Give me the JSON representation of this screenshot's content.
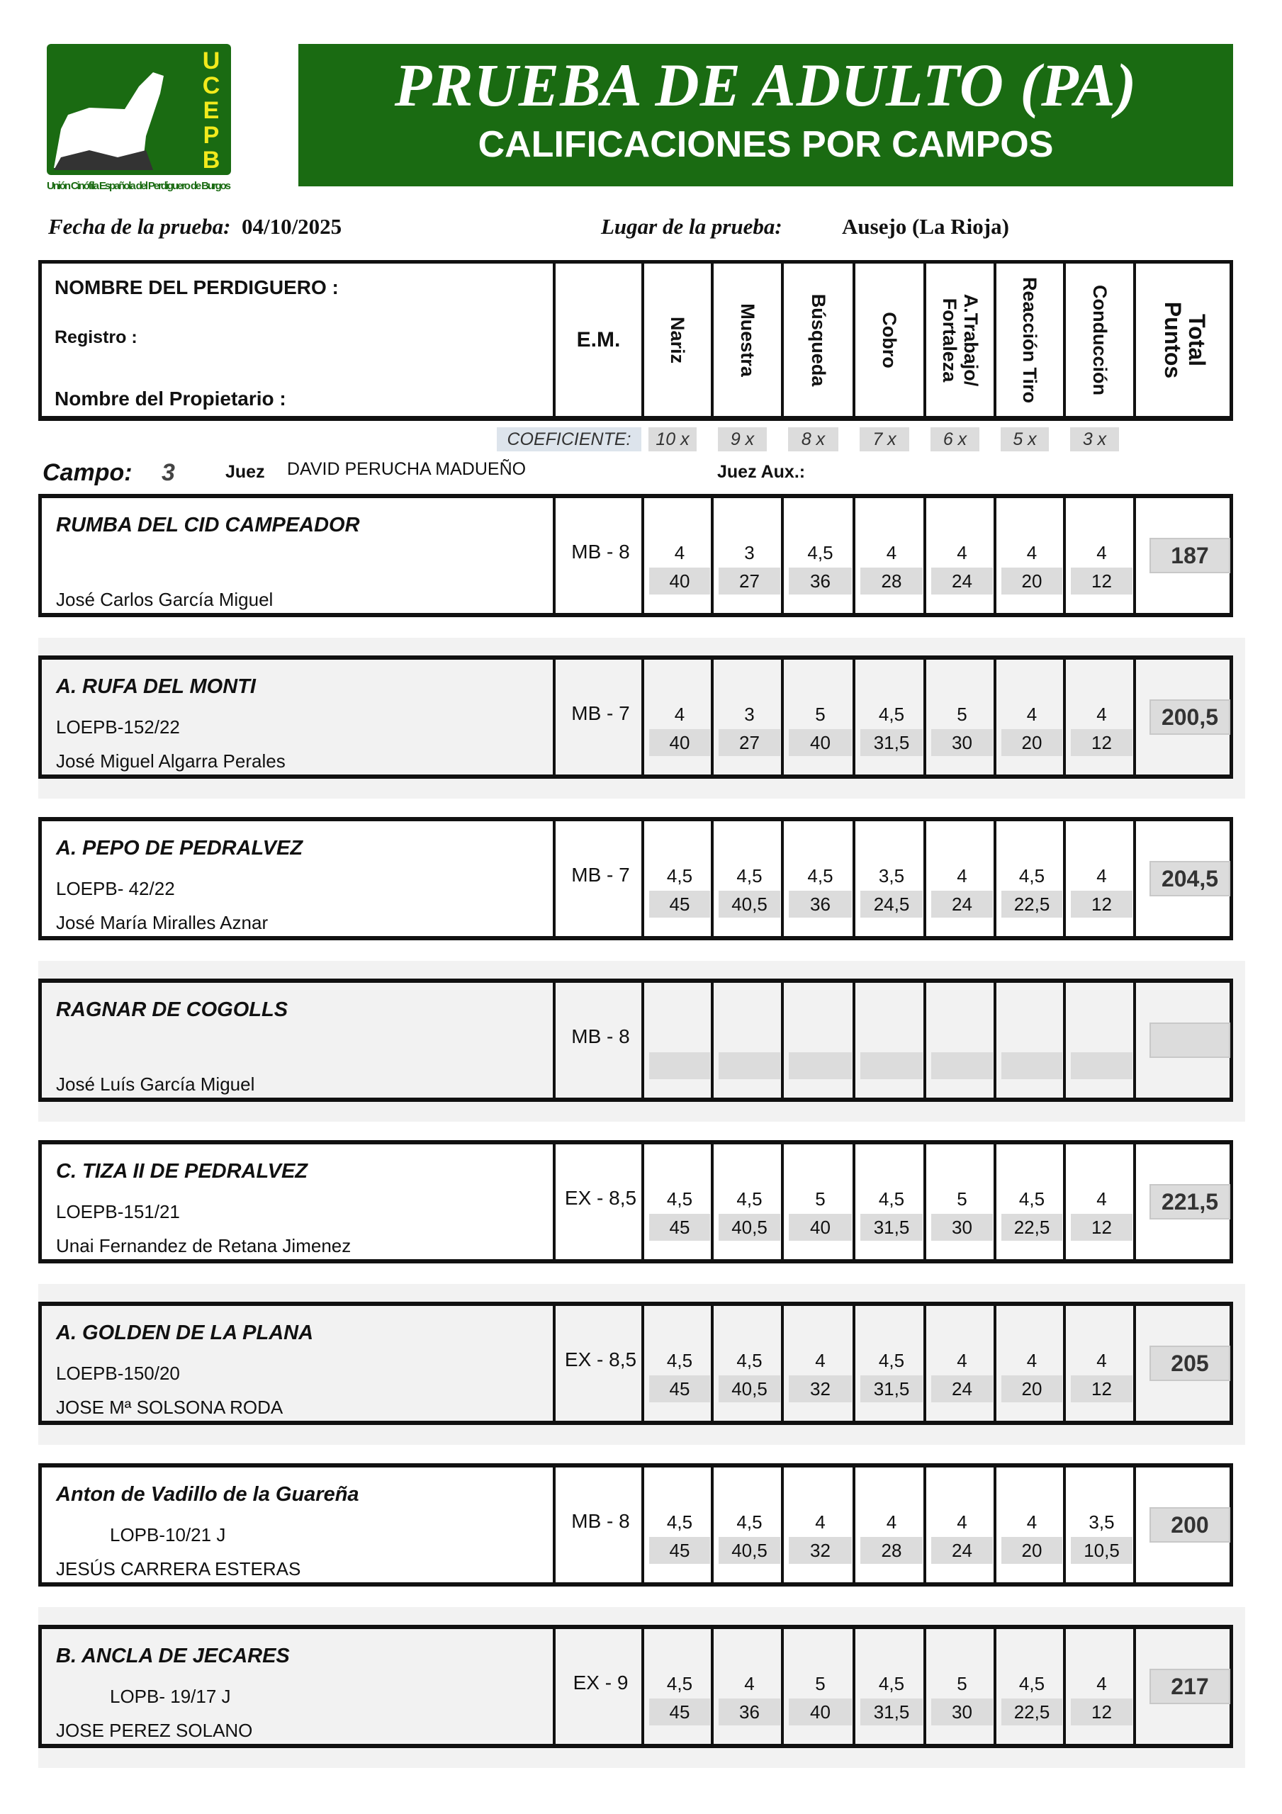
{
  "logo": {
    "letters": "UCEPB",
    "caption": "Unión Cinófila Española del Perdiguero de Burgos"
  },
  "header": {
    "title": "PRUEBA DE ADULTO (PA)",
    "subtitle": "CALIFICACIONES POR CAMPOS"
  },
  "meta": {
    "fecha_label": "Fecha de la prueba:",
    "fecha": "04/10/2025",
    "lugar_label": "Lugar de la prueba:",
    "lugar": "Ausejo (La Rioja)"
  },
  "table_header": {
    "nombre": "NOMBRE DEL PERDIGUERO :",
    "registro": "Registro :",
    "propietario": "Nombre del Propietario :",
    "em": "E.M.",
    "columns": [
      "Nariz",
      "Muestra",
      "Búsqueda",
      "Cobro",
      "A.Trabajo/ Fortaleza",
      "Reacción Tiro",
      "Conducción"
    ],
    "total": "Total Puntos"
  },
  "coeficiente": {
    "label": "COEFICIENTE:",
    "values": [
      "10 x",
      "9 x",
      "8 x",
      "7 x",
      "6 x",
      "5 x",
      "3 x"
    ]
  },
  "campo": {
    "label": "Campo:",
    "value": "3",
    "juez_label": "Juez",
    "juez": "DAVID  PERUCHA  MADUEÑO",
    "juez_aux_label": "Juez Aux.:"
  },
  "rows": [
    {
      "name": "RUMBA DEL CID CAMPEADOR",
      "registro": "",
      "owner": "José Carlos  García  Miguel",
      "em": "MB - 8",
      "scores": [
        "4",
        "3",
        "4,5",
        "4",
        "4",
        "4",
        "4"
      ],
      "points": [
        "40",
        "27",
        "36",
        "28",
        "24",
        "20",
        "12"
      ],
      "total": "187"
    },
    {
      "name": "A. RUFA DEL MONTI",
      "registro": "LOEPB-152/22",
      "owner": "José Miguel  Algarra  Perales",
      "em": "MB - 7",
      "scores": [
        "4",
        "3",
        "5",
        "4,5",
        "5",
        "4",
        "4"
      ],
      "points": [
        "40",
        "27",
        "40",
        "31,5",
        "30",
        "20",
        "12"
      ],
      "total": "200,5"
    },
    {
      "name": "A. PEPO DE PEDRALVEZ",
      "registro": "LOEPB- 42/22",
      "owner": "José María  Miralles  Aznar",
      "em": "MB - 7",
      "scores": [
        "4,5",
        "4,5",
        "4,5",
        "3,5",
        "4",
        "4,5",
        "4"
      ],
      "points": [
        "45",
        "40,5",
        "36",
        "24,5",
        "24",
        "22,5",
        "12"
      ],
      "total": "204,5"
    },
    {
      "name": "RAGNAR DE COGOLLS",
      "registro": "",
      "owner": "José Luís  García  Miguel",
      "em": "MB - 8",
      "scores": [
        "",
        "",
        "",
        "",
        "",
        "",
        ""
      ],
      "points": [
        "",
        "",
        "",
        "",
        "",
        "",
        ""
      ],
      "total": ""
    },
    {
      "name": "C. TIZA II DE PEDRALVEZ",
      "registro": "LOEPB-151/21",
      "owner": "Unai  Fernandez de Retana  Jimenez",
      "em": "EX - 8,5",
      "scores": [
        "4,5",
        "4,5",
        "5",
        "4,5",
        "5",
        "4,5",
        "4"
      ],
      "points": [
        "45",
        "40,5",
        "40",
        "31,5",
        "30",
        "22,5",
        "12"
      ],
      "total": "221,5"
    },
    {
      "name": "A. GOLDEN DE LA PLANA",
      "registro": "LOEPB-150/20",
      "owner": "JOSE Mª  SOLSONA  RODA",
      "em": "EX - 8,5",
      "scores": [
        "4,5",
        "4,5",
        "4",
        "4,5",
        "4",
        "4",
        "4"
      ],
      "points": [
        "45",
        "40,5",
        "32",
        "31,5",
        "24",
        "20",
        "12"
      ],
      "total": "205"
    },
    {
      "name": "Anton de Vadillo de la Guareña",
      "registro": "LOPB-10/21 J",
      "owner": "JESÚS  CARRERA  ESTERAS",
      "em": "MB - 8",
      "scores": [
        "4,5",
        "4,5",
        "4",
        "4",
        "4",
        "4",
        "3,5"
      ],
      "points": [
        "45",
        "40,5",
        "32",
        "28",
        "24",
        "20",
        "10,5"
      ],
      "total": "200",
      "indent": true
    },
    {
      "name": "B. ANCLA DE JECARES",
      "registro": "LOPB- 19/17 J",
      "owner": "JOSE   PEREZ  SOLANO",
      "em": "EX - 9",
      "scores": [
        "4,5",
        "4",
        "5",
        "4,5",
        "5",
        "4,5",
        "4"
      ],
      "points": [
        "45",
        "36",
        "40",
        "31,5",
        "30",
        "22,5",
        "12"
      ],
      "total": "217",
      "indent": true
    }
  ],
  "colors": {
    "brand_green": "#1a6b12",
    "logo_yellow": "#f2ea1c",
    "cell_gray": "#dcdcdc",
    "coef_blue": "#dde4ec"
  }
}
